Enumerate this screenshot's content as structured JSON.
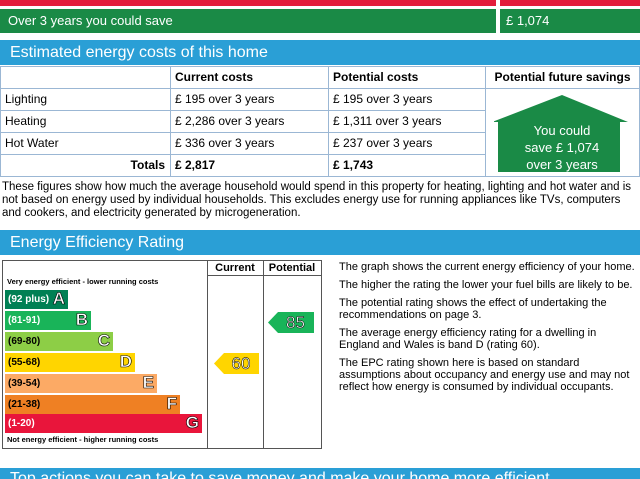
{
  "savings_row": {
    "label": "Over 3 years you could save",
    "value": "£ 1,074"
  },
  "costs": {
    "title": "Estimated energy costs of this home",
    "headers": [
      "Current costs",
      "Potential costs",
      "Potential future savings"
    ],
    "rows": [
      [
        "Lighting",
        "£ 195 over 3 years",
        "£ 195 over 3 years"
      ],
      [
        "Heating",
        "£ 2,286 over 3 years",
        "£ 1,311 over 3 years"
      ],
      [
        "Hot Water",
        "£ 336 over 3 years",
        "£ 237 over 3 years"
      ]
    ],
    "totals": {
      "label": "Totals",
      "current": "£ 2,817",
      "potential": "£ 1,743"
    },
    "house": [
      "You could",
      "save £ 1,074",
      "over 3 years"
    ],
    "note": "These figures show how much the average household would spend in this property for heating, lighting and hot water and is not based on energy used by individual households. This excludes energy use for running appliances like TVs, computers and cookers, and electricity generated by microgeneration."
  },
  "rating": {
    "title": "Energy Efficiency Rating",
    "headers": [
      "Current",
      "Potential"
    ],
    "top_note": "Very energy efficient - lower running costs",
    "bottom_note": "Not energy efficient - higher running costs",
    "bands": [
      {
        "range": "(92 plus)",
        "letter": "A"
      },
      {
        "range": "(81-91)",
        "letter": "B"
      },
      {
        "range": "(69-80)",
        "letter": "C"
      },
      {
        "range": "(55-68)",
        "letter": "D"
      },
      {
        "range": "(39-54)",
        "letter": "E"
      },
      {
        "range": "(21-38)",
        "letter": "F"
      },
      {
        "range": "(1-20)",
        "letter": "G"
      }
    ],
    "current": 60,
    "potential": 85,
    "paragraphs": [
      "The graph shows the current energy efficiency of your home.",
      "The higher the rating the lower your fuel bills are likely to be.",
      "The potential rating shows the effect of undertaking the recommendations on page 3.",
      "The average energy efficiency rating for a dwelling in England and Wales is band D (rating 60).",
      "The EPC rating shown here is based on standard assumptions about occupancy and energy use and may not reflect how energy is consumed by individual occupants."
    ]
  },
  "next_section": {
    "title": "Top actions you can take to save money and make your home more efficient"
  }
}
